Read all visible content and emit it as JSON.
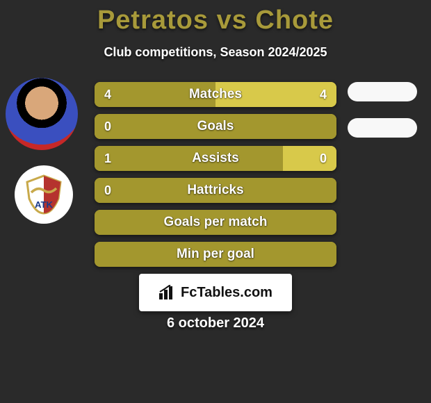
{
  "title": {
    "text": "Petratos vs Chote",
    "color": "#a89a3a",
    "fontsize": 38
  },
  "subtitle": {
    "text": "Club competitions, Season 2024/2025",
    "color": "#ffffff",
    "fontsize": 18
  },
  "colors": {
    "background": "#2a2a2a",
    "bar_left_fill": "#a3972e",
    "bar_right_fill": "#d8c94a",
    "bar_base": "#a3972e",
    "bar_text": "#ffffff"
  },
  "bars": {
    "label_fontsize": 19,
    "value_fontsize": 18,
    "rows": [
      {
        "label": "Matches",
        "left_val": "4",
        "right_val": "4",
        "left_pct": 50,
        "right_pct": 50,
        "show_values": true
      },
      {
        "label": "Goals",
        "left_val": "0",
        "right_val": "",
        "left_pct": 100,
        "right_pct": 0,
        "show_values": true
      },
      {
        "label": "Assists",
        "left_val": "1",
        "right_val": "0",
        "left_pct": 78,
        "right_pct": 22,
        "show_values": true
      },
      {
        "label": "Hattricks",
        "left_val": "0",
        "right_val": "",
        "left_pct": 100,
        "right_pct": 0,
        "show_values": true
      },
      {
        "label": "Goals per match",
        "left_val": "",
        "right_val": "",
        "left_pct": 100,
        "right_pct": 0,
        "show_values": false
      },
      {
        "label": "Min per goal",
        "left_val": "",
        "right_val": "",
        "left_pct": 100,
        "right_pct": 0,
        "show_values": false
      }
    ]
  },
  "site_badge": {
    "text": "FcTables.com",
    "fontsize": 20
  },
  "date": {
    "text": "6 october 2024",
    "color": "#ffffff",
    "fontsize": 20
  },
  "left_avatars": {
    "player_name": "Petratos",
    "crest_name": "ATK"
  },
  "right_pills": {
    "count": 2,
    "color": "#f8f8f8"
  }
}
